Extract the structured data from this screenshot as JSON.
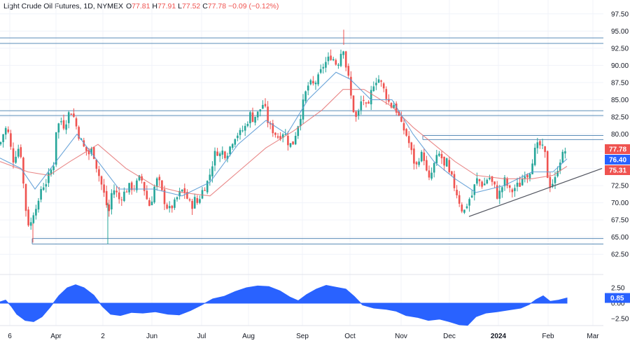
{
  "header": {
    "symbol": "Light Crude Oil Futures, 1D, NYMEX",
    "o_label": "O",
    "o_value": "77.81",
    "h_label": "H",
    "h_value": "77.91",
    "l_label": "L",
    "l_value": "77.52",
    "c_label": "C",
    "c_value": "77.78",
    "change": "−0.09 (−0.12%)"
  },
  "colors": {
    "up": "#26a69a",
    "down": "#ef5350",
    "osc": "#2962ff",
    "ma_fast": "#5b9bd5",
    "ma_slow": "#e57373",
    "level": "#5b8db8",
    "trend": "#50535e",
    "grid": "#f0f3fa",
    "axis_text": "#131722"
  },
  "chart_data": [
    {
      "type": "candlestick",
      "y_ticks": [
        "97.50",
        "95.00",
        "92.50",
        "90.00",
        "87.50",
        "85.00",
        "82.50",
        "80.00",
        "77.50",
        "75.00",
        "72.50",
        "70.00",
        "67.50",
        "65.00",
        "62.50"
      ],
      "x_ticks": [
        "6",
        "Apr",
        "2",
        "Jun",
        "Jul",
        "Aug",
        "Sep",
        "Oct",
        "Nov",
        "Dec",
        "2024",
        "Feb",
        "Mar"
      ],
      "ylim": [
        61.5,
        98.5
      ],
      "price_tags": [
        {
          "label": "77.78",
          "value": 77.78,
          "color": "#ef5350"
        },
        {
          "label": "76.40",
          "value": 76.4,
          "color": "#2962ff"
        },
        {
          "label": "75.31",
          "value": 75.31,
          "color": "#ef5350"
        }
      ],
      "levels": [
        94.0,
        93.2,
        83.4,
        82.7,
        79.8,
        79.2,
        64.8,
        64.0
      ],
      "trendline": {
        "from": [
          68.0,
          68.0
        ],
        "to": [
          860,
          75.0
        ]
      },
      "close_path": [
        [
          0,
          78.5
        ],
        [
          6,
          80.5
        ],
        [
          10,
          81
        ],
        [
          14,
          79
        ],
        [
          18,
          76
        ],
        [
          22,
          77
        ],
        [
          26,
          78
        ],
        [
          30,
          77
        ],
        [
          34,
          72
        ],
        [
          38,
          68
        ],
        [
          42,
          66.5
        ],
        [
          46,
          67.5
        ],
        [
          50,
          70
        ],
        [
          54,
          69
        ],
        [
          58,
          72
        ],
        [
          62,
          72.5
        ],
        [
          66,
          73
        ],
        [
          70,
          74
        ],
        [
          74,
          75
        ],
        [
          78,
          76
        ],
        [
          80,
          80.5
        ],
        [
          84,
          81.5
        ],
        [
          88,
          82
        ],
        [
          92,
          81
        ],
        [
          96,
          82.5
        ],
        [
          100,
          83.4
        ],
        [
          104,
          83
        ],
        [
          108,
          81.5
        ],
        [
          112,
          80
        ],
        [
          116,
          79
        ],
        [
          120,
          78
        ],
        [
          124,
          77.5
        ],
        [
          128,
          77
        ],
        [
          132,
          78
        ],
        [
          136,
          76
        ],
        [
          140,
          74.5
        ],
        [
          144,
          73
        ],
        [
          148,
          71.5
        ],
        [
          152,
          70
        ],
        [
          154,
          67
        ],
        [
          158,
          71
        ],
        [
          162,
          72
        ],
        [
          166,
          71.5
        ],
        [
          170,
          70.5
        ],
        [
          174,
          71
        ],
        [
          178,
          71.5
        ],
        [
          182,
          72
        ],
        [
          186,
          72.5
        ],
        [
          190,
          72
        ],
        [
          194,
          72.5
        ],
        [
          198,
          73.5
        ],
        [
          202,
          73.5
        ],
        [
          206,
          72
        ],
        [
          210,
          70.5
        ],
        [
          214,
          69.5
        ],
        [
          218,
          71
        ],
        [
          222,
          73
        ],
        [
          226,
          73.5
        ],
        [
          230,
          72
        ],
        [
          234,
          70.5
        ],
        [
          238,
          69.5
        ],
        [
          242,
          69
        ],
        [
          246,
          69.5
        ],
        [
          250,
          70
        ],
        [
          254,
          71
        ],
        [
          258,
          71.5
        ],
        [
          262,
          72
        ],
        [
          266,
          71
        ],
        [
          270,
          70
        ],
        [
          274,
          69.5
        ],
        [
          278,
          70.5
        ],
        [
          282,
          70
        ],
        [
          286,
          71
        ],
        [
          290,
          72
        ],
        [
          294,
          72.5
        ],
        [
          298,
          73.5
        ],
        [
          302,
          75
        ],
        [
          306,
          77
        ],
        [
          310,
          77.5
        ],
        [
          314,
          77
        ],
        [
          318,
          77.5
        ],
        [
          322,
          77
        ],
        [
          326,
          77.5
        ],
        [
          330,
          78.5
        ],
        [
          334,
          79.5
        ],
        [
          338,
          80
        ],
        [
          342,
          80
        ],
        [
          346,
          80.5
        ],
        [
          350,
          81
        ],
        [
          354,
          82
        ],
        [
          358,
          83
        ],
        [
          362,
          82
        ],
        [
          366,
          83
        ],
        [
          370,
          83
        ],
        [
          374,
          84.5
        ],
        [
          378,
          84
        ],
        [
          382,
          82
        ],
        [
          386,
          81
        ],
        [
          390,
          80.5
        ],
        [
          394,
          80
        ],
        [
          398,
          79.5
        ],
        [
          402,
          80
        ],
        [
          406,
          80.5
        ],
        [
          410,
          79
        ],
        [
          414,
          78.5
        ],
        [
          418,
          78.5
        ],
        [
          422,
          80
        ],
        [
          426,
          81.5
        ],
        [
          430,
          83
        ],
        [
          434,
          85
        ],
        [
          438,
          86.5
        ],
        [
          442,
          87.5
        ],
        [
          446,
          87
        ],
        [
          450,
          87.5
        ],
        [
          454,
          88
        ],
        [
          458,
          89
        ],
        [
          462,
          90
        ],
        [
          466,
          90.5
        ],
        [
          470,
          91
        ],
        [
          474,
          91.5
        ],
        [
          478,
          90.5
        ],
        [
          482,
          90
        ],
        [
          486,
          91.5
        ],
        [
          490,
          93
        ],
        [
          494,
          90
        ],
        [
          498,
          88
        ],
        [
          502,
          85
        ],
        [
          506,
          83
        ],
        [
          510,
          82
        ],
        [
          514,
          84
        ],
        [
          518,
          85.5
        ],
        [
          522,
          84
        ],
        [
          526,
          83.5
        ],
        [
          530,
          86
        ],
        [
          534,
          87.5
        ],
        [
          538,
          88
        ],
        [
          542,
          88
        ],
        [
          546,
          87
        ],
        [
          550,
          86
        ],
        [
          554,
          85
        ],
        [
          558,
          84
        ],
        [
          562,
          84.5
        ],
        [
          566,
          83.5
        ],
        [
          570,
          82.5
        ],
        [
          574,
          81
        ],
        [
          578,
          80.5
        ],
        [
          582,
          79.5
        ],
        [
          586,
          78
        ],
        [
          590,
          76.5
        ],
        [
          594,
          75
        ],
        [
          598,
          76.5
        ],
        [
          602,
          77
        ],
        [
          606,
          76.5
        ],
        [
          610,
          74
        ],
        [
          614,
          73
        ],
        [
          618,
          75
        ],
        [
          622,
          76
        ],
        [
          626,
          77
        ],
        [
          630,
          77
        ],
        [
          634,
          75
        ],
        [
          638,
          76
        ],
        [
          642,
          74
        ],
        [
          646,
          73.5
        ],
        [
          650,
          72
        ],
        [
          654,
          71
        ],
        [
          658,
          69.5
        ],
        [
          662,
          68.5
        ],
        [
          666,
          69.5
        ],
        [
          670,
          70.5
        ],
        [
          674,
          71
        ],
        [
          678,
          72.5
        ],
        [
          682,
          73.5
        ],
        [
          686,
          73
        ],
        [
          690,
          72.5
        ],
        [
          694,
          73
        ],
        [
          698,
          74
        ],
        [
          702,
          73
        ],
        [
          706,
          72.5
        ],
        [
          710,
          71
        ],
        [
          714,
          71.5
        ],
        [
          718,
          72.5
        ],
        [
          722,
          73.5
        ],
        [
          726,
          72
        ],
        [
          730,
          71.5
        ],
        [
          734,
          72
        ],
        [
          738,
          72.5
        ],
        [
          742,
          72.5
        ],
        [
          746,
          73.5
        ],
        [
          750,
          74.5
        ],
        [
          754,
          74
        ],
        [
          758,
          75
        ],
        [
          762,
          77
        ],
        [
          766,
          78
        ],
        [
          770,
          78.5
        ],
        [
          774,
          78
        ],
        [
          778,
          77.5
        ],
        [
          782,
          74
        ],
        [
          786,
          72.5
        ],
        [
          790,
          73
        ],
        [
          794,
          73.5
        ],
        [
          798,
          76
        ],
        [
          802,
          76.5
        ],
        [
          806,
          77.5
        ],
        [
          810,
          77.78
        ]
      ],
      "ma_fast_path": [
        [
          0,
          76.5
        ],
        [
          30,
          75
        ],
        [
          50,
          72
        ],
        [
          80,
          76
        ],
        [
          110,
          80
        ],
        [
          140,
          76
        ],
        [
          170,
          72
        ],
        [
          220,
          72
        ],
        [
          260,
          71
        ],
        [
          300,
          73
        ],
        [
          340,
          78.5
        ],
        [
          380,
          82
        ],
        [
          410,
          80
        ],
        [
          440,
          85
        ],
        [
          480,
          89
        ],
        [
          500,
          88
        ],
        [
          530,
          85
        ],
        [
          560,
          85
        ],
        [
          590,
          80
        ],
        [
          620,
          76
        ],
        [
          650,
          73.5
        ],
        [
          680,
          71.5
        ],
        [
          720,
          72.5
        ],
        [
          760,
          74.5
        ],
        [
          790,
          74.5
        ],
        [
          810,
          76.4
        ]
      ],
      "ma_slow_path": [
        [
          0,
          76
        ],
        [
          40,
          74.5
        ],
        [
          70,
          74
        ],
        [
          100,
          76
        ],
        [
          140,
          78.5
        ],
        [
          180,
          75
        ],
        [
          220,
          72.5
        ],
        [
          260,
          71.5
        ],
        [
          300,
          71
        ],
        [
          340,
          74.5
        ],
        [
          380,
          78
        ],
        [
          420,
          80.5
        ],
        [
          460,
          83.5
        ],
        [
          490,
          86.5
        ],
        [
          520,
          86.5
        ],
        [
          560,
          84
        ],
        [
          590,
          81
        ],
        [
          620,
          78.5
        ],
        [
          650,
          76
        ],
        [
          680,
          74
        ],
        [
          720,
          73.5
        ],
        [
          760,
          73.5
        ],
        [
          790,
          74
        ],
        [
          810,
          75.31
        ]
      ]
    },
    {
      "type": "area",
      "name": "oscillator",
      "y_ticks": [
        "2.50",
        "0.00",
        "−2.50"
      ],
      "ylim": [
        -3.3,
        3.3
      ],
      "last_value": 0.85,
      "last_value_label": "0.85",
      "path": [
        [
          0,
          0.2
        ],
        [
          8,
          0.5
        ],
        [
          16,
          -0.5
        ],
        [
          24,
          -1.8
        ],
        [
          36,
          -2.8
        ],
        [
          48,
          -3
        ],
        [
          60,
          -2.2
        ],
        [
          72,
          -0.6
        ],
        [
          84,
          1.2
        ],
        [
          96,
          2.5
        ],
        [
          108,
          3
        ],
        [
          120,
          2.5
        ],
        [
          134,
          1.3
        ],
        [
          146,
          -0.5
        ],
        [
          158,
          -1.8
        ],
        [
          172,
          -2
        ],
        [
          188,
          -1.5
        ],
        [
          204,
          -1.6
        ],
        [
          222,
          -1.4
        ],
        [
          240,
          -1.8
        ],
        [
          256,
          -1.9
        ],
        [
          272,
          -1.2
        ],
        [
          288,
          -0.3
        ],
        [
          304,
          0.7
        ],
        [
          320,
          1.1
        ],
        [
          336,
          1.9
        ],
        [
          352,
          2.5
        ],
        [
          368,
          2.8
        ],
        [
          384,
          2.7
        ],
        [
          400,
          2
        ],
        [
          414,
          1
        ],
        [
          426,
          0.4
        ],
        [
          438,
          1.4
        ],
        [
          452,
          2.3
        ],
        [
          466,
          2.9
        ],
        [
          480,
          2.6
        ],
        [
          494,
          2.3
        ],
        [
          506,
          1.1
        ],
        [
          518,
          -0.3
        ],
        [
          534,
          -0.8
        ],
        [
          552,
          -1
        ],
        [
          566,
          -1.3
        ],
        [
          580,
          -2
        ],
        [
          596,
          -2.3
        ],
        [
          612,
          -2.8
        ],
        [
          628,
          -2.6
        ],
        [
          642,
          -3
        ],
        [
          656,
          -3.5
        ],
        [
          668,
          -3.6
        ],
        [
          680,
          -2.2
        ],
        [
          694,
          -1.6
        ],
        [
          710,
          -1.4
        ],
        [
          726,
          -1.1
        ],
        [
          744,
          -0.8
        ],
        [
          756,
          -0.2
        ],
        [
          766,
          0.6
        ],
        [
          776,
          1.2
        ],
        [
          786,
          0.3
        ],
        [
          798,
          0.5
        ],
        [
          810,
          0.85
        ]
      ]
    }
  ]
}
